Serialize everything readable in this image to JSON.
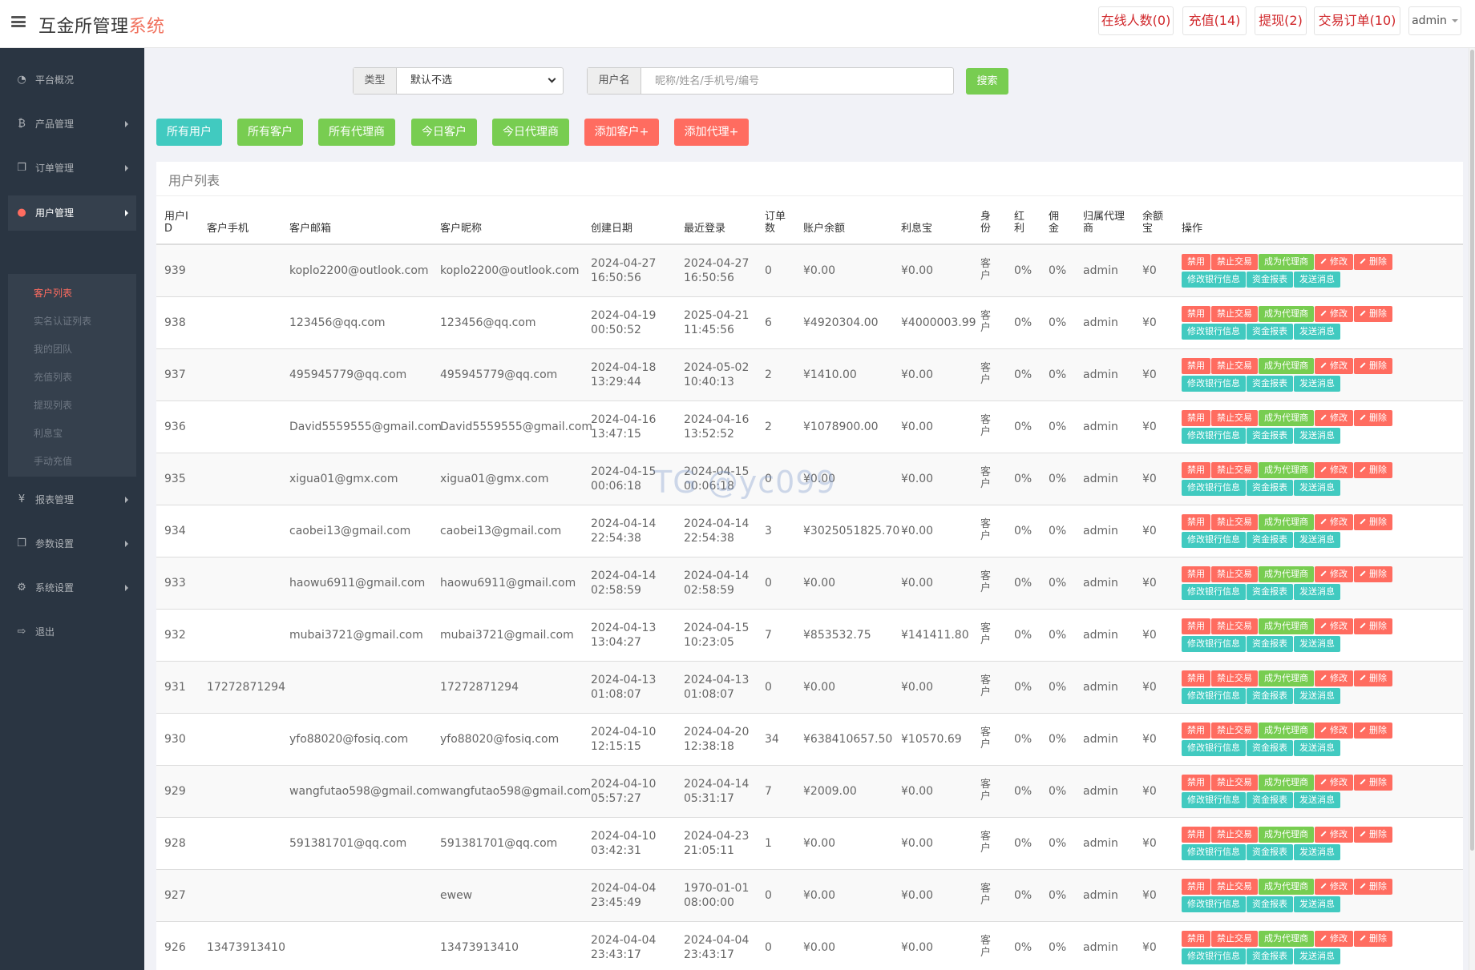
{
  "header": {
    "brand_main": "互金所管理",
    "brand_accent": "系统",
    "online_label": "在线人数(0)",
    "recharge_label": "充值(14)",
    "withdraw_label": "提现(2)",
    "orders_label": "交易订单(10)",
    "user_label": "admin"
  },
  "sidebar": {
    "items": [
      {
        "label": "平台概况",
        "icon": "dashboard-icon"
      },
      {
        "label": "产品管理",
        "icon": "bitcoin-icon"
      },
      {
        "label": "订单管理",
        "icon": "copy-icon"
      },
      {
        "label": "用户管理",
        "icon": "user-icon"
      },
      {
        "label": "报表管理",
        "icon": "yen-icon"
      },
      {
        "label": "参数设置",
        "icon": "copy-icon"
      },
      {
        "label": "系统设置",
        "icon": "gears-icon"
      },
      {
        "label": "退出",
        "icon": "sign-out-icon"
      }
    ],
    "submenu": [
      "客户列表",
      "实名认证列表",
      "我的团队",
      "充值列表",
      "提现列表",
      "利息宝",
      "手动充值"
    ]
  },
  "filters": {
    "type_label": "类型",
    "type_value": "默认不选",
    "username_label": "用户名",
    "username_placeholder": "昵称/姓名/手机号/编号",
    "search_label": "搜索"
  },
  "actions": {
    "all_users": "所有用户",
    "all_clients": "所有客户",
    "all_agents": "所有代理商",
    "today_clients": "今日客户",
    "today_agents": "今日代理商",
    "add_client": "添加客户+",
    "add_agent": "添加代理+"
  },
  "table": {
    "title": "用户列表",
    "headers": [
      "用户ID",
      "客户手机",
      "客户邮箱",
      "客户昵称",
      "创建日期",
      "最近登录",
      "订单数",
      "账户余额",
      "利息宝",
      "身份",
      "红利",
      "佣金",
      "归属代理商",
      "余额宝",
      "操作"
    ],
    "ops": [
      "禁用",
      "禁止交易",
      "成为代理商",
      "修改",
      "删除",
      "修改银行信息",
      "资金报表",
      "发送消息"
    ],
    "rows": [
      {
        "id": "939",
        "phone": "",
        "email": "koplo2200@outlook.com",
        "nick": "koplo2200@outlook.com",
        "created_d": "2024-04-27",
        "created_t": "16:50:56",
        "login_d": "2024-04-27",
        "login_t": "16:50:56",
        "orders": "0",
        "balance": "¥0.00",
        "interest": "¥0.00",
        "role": "客户",
        "bonus": "0%",
        "comm": "0%",
        "agent": "admin",
        "yeb": "¥0"
      },
      {
        "id": "938",
        "phone": "",
        "email": "123456@qq.com",
        "nick": "123456@qq.com",
        "created_d": "2024-04-19",
        "created_t": "00:50:52",
        "login_d": "2025-04-21",
        "login_t": "11:45:56",
        "orders": "6",
        "balance": "¥4920304.00",
        "interest": "¥4000003.99",
        "role": "客户",
        "bonus": "0%",
        "comm": "0%",
        "agent": "admin",
        "yeb": "¥0"
      },
      {
        "id": "937",
        "phone": "",
        "email": "495945779@qq.com",
        "nick": "495945779@qq.com",
        "created_d": "2024-04-18",
        "created_t": "13:29:44",
        "login_d": "2024-05-02",
        "login_t": "10:40:13",
        "orders": "2",
        "balance": "¥1410.00",
        "interest": "¥0.00",
        "role": "客户",
        "bonus": "0%",
        "comm": "0%",
        "agent": "admin",
        "yeb": "¥0"
      },
      {
        "id": "936",
        "phone": "",
        "email": "David5559555@gmail.com",
        "nick": "David5559555@gmail.com",
        "created_d": "2024-04-16",
        "created_t": "13:47:15",
        "login_d": "2024-04-16",
        "login_t": "13:52:52",
        "orders": "2",
        "balance": "¥1078900.00",
        "interest": "¥0.00",
        "role": "客户",
        "bonus": "0%",
        "comm": "0%",
        "agent": "admin",
        "yeb": "¥0"
      },
      {
        "id": "935",
        "phone": "",
        "email": "xigua01@gmx.com",
        "nick": "xigua01@gmx.com",
        "created_d": "2024-04-15",
        "created_t": "00:06:18",
        "login_d": "2024-04-15",
        "login_t": "00:06:18",
        "orders": "0",
        "balance": "¥0.00",
        "interest": "¥0.00",
        "role": "客户",
        "bonus": "0%",
        "comm": "0%",
        "agent": "admin",
        "yeb": "¥0"
      },
      {
        "id": "934",
        "phone": "",
        "email": "caobei13@gmail.com",
        "nick": "caobei13@gmail.com",
        "created_d": "2024-04-14",
        "created_t": "22:54:38",
        "login_d": "2024-04-14",
        "login_t": "22:54:38",
        "orders": "3",
        "balance": "¥3025051825.70",
        "interest": "¥0.00",
        "role": "客户",
        "bonus": "0%",
        "comm": "0%",
        "agent": "admin",
        "yeb": "¥0"
      },
      {
        "id": "933",
        "phone": "",
        "email": "haowu6911@gmail.com",
        "nick": "haowu6911@gmail.com",
        "created_d": "2024-04-14",
        "created_t": "02:58:59",
        "login_d": "2024-04-14",
        "login_t": "02:58:59",
        "orders": "0",
        "balance": "¥0.00",
        "interest": "¥0.00",
        "role": "客户",
        "bonus": "0%",
        "comm": "0%",
        "agent": "admin",
        "yeb": "¥0"
      },
      {
        "id": "932",
        "phone": "",
        "email": "mubai3721@gmail.com",
        "nick": "mubai3721@gmail.com",
        "created_d": "2024-04-13",
        "created_t": "13:04:27",
        "login_d": "2024-04-15",
        "login_t": "10:23:05",
        "orders": "7",
        "balance": "¥853532.75",
        "interest": "¥141411.80",
        "role": "客户",
        "bonus": "0%",
        "comm": "0%",
        "agent": "admin",
        "yeb": "¥0"
      },
      {
        "id": "931",
        "phone": "17272871294",
        "email": "",
        "nick": "17272871294",
        "created_d": "2024-04-13",
        "created_t": "01:08:07",
        "login_d": "2024-04-13",
        "login_t": "01:08:07",
        "orders": "0",
        "balance": "¥0.00",
        "interest": "¥0.00",
        "role": "客户",
        "bonus": "0%",
        "comm": "0%",
        "agent": "admin",
        "yeb": "¥0"
      },
      {
        "id": "930",
        "phone": "",
        "email": "yfo88020@fosiq.com",
        "nick": "yfo88020@fosiq.com",
        "created_d": "2024-04-10",
        "created_t": "12:15:15",
        "login_d": "2024-04-20",
        "login_t": "12:38:18",
        "orders": "34",
        "balance": "¥638410657.50",
        "interest": "¥10570.69",
        "role": "客户",
        "bonus": "0%",
        "comm": "0%",
        "agent": "admin",
        "yeb": "¥0"
      },
      {
        "id": "929",
        "phone": "",
        "email": "wangfutao598@gmail.com",
        "nick": "wangfutao598@gmail.com",
        "created_d": "2024-04-10",
        "created_t": "05:57:27",
        "login_d": "2024-04-14",
        "login_t": "05:31:17",
        "orders": "7",
        "balance": "¥2009.00",
        "interest": "¥0.00",
        "role": "客户",
        "bonus": "0%",
        "comm": "0%",
        "agent": "admin",
        "yeb": "¥0"
      },
      {
        "id": "928",
        "phone": "",
        "email": "591381701@qq.com",
        "nick": "591381701@qq.com",
        "created_d": "2024-04-10",
        "created_t": "03:42:31",
        "login_d": "2024-04-23",
        "login_t": "21:05:11",
        "orders": "1",
        "balance": "¥0.00",
        "interest": "¥0.00",
        "role": "客户",
        "bonus": "0%",
        "comm": "0%",
        "agent": "admin",
        "yeb": "¥0"
      },
      {
        "id": "927",
        "phone": "",
        "email": "",
        "nick": "ewew",
        "created_d": "2024-04-04",
        "created_t": "23:45:49",
        "login_d": "1970-01-01",
        "login_t": "08:00:00",
        "orders": "0",
        "balance": "¥0.00",
        "interest": "¥0.00",
        "role": "客户",
        "bonus": "0%",
        "comm": "0%",
        "agent": "admin",
        "yeb": "¥0"
      },
      {
        "id": "926",
        "phone": "13473913410",
        "email": "",
        "nick": "13473913410",
        "created_d": "2024-04-04",
        "created_t": "23:43:17",
        "login_d": "2024-04-04",
        "login_t": "23:43:17",
        "orders": "0",
        "balance": "¥0.00",
        "interest": "¥0.00",
        "role": "客户",
        "bonus": "0%",
        "comm": "0%",
        "agent": "admin",
        "yeb": "¥0"
      }
    ]
  },
  "watermark": "TG @yc099"
}
